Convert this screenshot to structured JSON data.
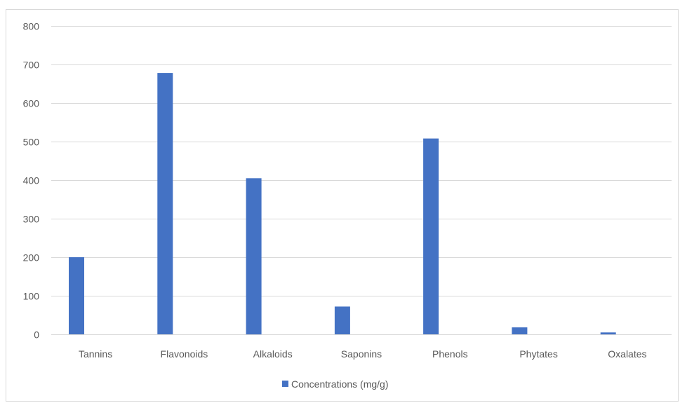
{
  "chart_data": {
    "type": "bar",
    "title": "",
    "xlabel": "",
    "ylabel": "",
    "categories": [
      "Tannins",
      "Flavonoids",
      "Alkaloids",
      "Saponins",
      "Phenols",
      "Phytates",
      "Oxalates"
    ],
    "series": [
      {
        "name": "Concentrations (mg/g)",
        "values": [
          200,
          678,
          405,
          72,
          508,
          18,
          5
        ],
        "color": "#4472c4"
      }
    ],
    "ylim": [
      0,
      800
    ],
    "yticks": [
      0,
      100,
      200,
      300,
      400,
      500,
      600,
      700,
      800
    ],
    "grid": true,
    "legend_position": "bottom"
  }
}
